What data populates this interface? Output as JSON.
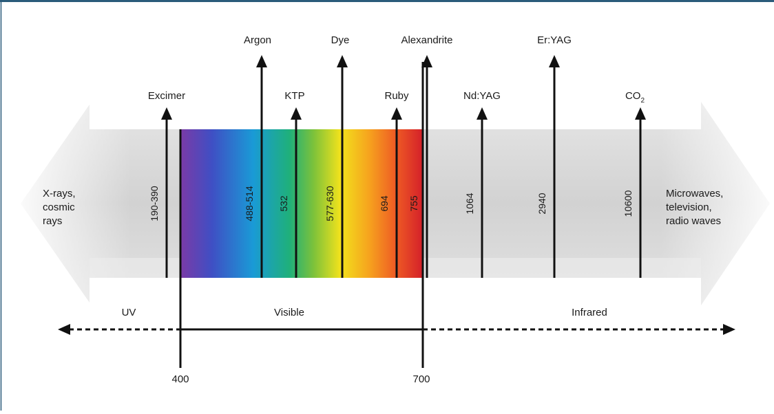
{
  "left_label": [
    "X-rays,",
    "cosmic",
    "rays"
  ],
  "right_label": [
    "Microwaves,",
    "television,",
    "radio waves"
  ],
  "regions": {
    "uv": "UV",
    "visible": "Visible",
    "infrared": "Infrared"
  },
  "boundaries": {
    "start": "400",
    "end": "700"
  },
  "lasers": [
    {
      "name": "Excimer",
      "wavelength": "190-390"
    },
    {
      "name": "Argon",
      "wavelength": "488-514"
    },
    {
      "name": "KTP",
      "wavelength": "532"
    },
    {
      "name": "Dye",
      "wavelength": "577-630"
    },
    {
      "name": "Ruby",
      "wavelength": "694"
    },
    {
      "name": "Alexandrite",
      "wavelength": "755"
    },
    {
      "name": "Nd:YAG",
      "wavelength": "1064"
    },
    {
      "name": "Er:YAG",
      "wavelength": "2940"
    },
    {
      "name": "CO",
      "name_sub": "2",
      "wavelength": "10600"
    }
  ],
  "colors": {
    "frame_border": "#2b5b7a",
    "arrow_body": "#d9d9d9",
    "arrow_body_shadow": "#bdbdbd",
    "text": "#1a1a1a",
    "spectrum": [
      "#7b3aa6",
      "#3f4fc4",
      "#1a9ad6",
      "#1fb07a",
      "#7dc23a",
      "#f2e21c",
      "#f6a21e",
      "#ee5a24",
      "#d4202a"
    ]
  }
}
